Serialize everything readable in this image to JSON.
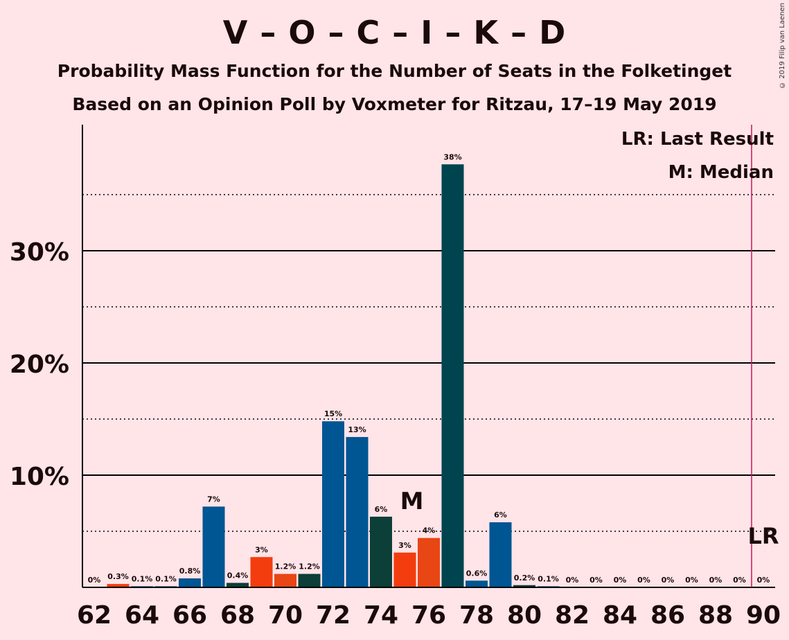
{
  "title": "V – O – C – I – K – D",
  "subtitle1": "Probability Mass Function for the Number of Seats in the Folketinget",
  "subtitle2": "Based on an Opinion Poll by Voxmeter for Ritzau, 17–19 May 2019",
  "copyright": "© 2019 Filip van Laenen",
  "legend": {
    "lr": "LR: Last Result",
    "m": "M: Median"
  },
  "markers": {
    "median_label": "M",
    "median_seat": 75,
    "lr_label": "LR",
    "lr_seat": 90
  },
  "colors": {
    "blue": "#005593",
    "red": "#F33D0E",
    "orange": "#E84614",
    "green": "#0B3F38",
    "teal": "#004450",
    "lr_line": "#C2185B"
  },
  "chart_data": {
    "type": "bar",
    "xlabel": "",
    "ylabel": "",
    "xlim": [
      62,
      90
    ],
    "ylim": [
      0,
      40
    ],
    "yticks": [
      10,
      20,
      30
    ],
    "ytick_labels": [
      "10%",
      "20%",
      "30%"
    ],
    "xticks": [
      62,
      64,
      66,
      68,
      70,
      72,
      74,
      76,
      78,
      80,
      82,
      84,
      86,
      88,
      90
    ],
    "seats": [
      62,
      63,
      64,
      65,
      66,
      67,
      68,
      69,
      70,
      71,
      72,
      73,
      74,
      75,
      76,
      77,
      78,
      79,
      80,
      81,
      82,
      83,
      84,
      85,
      86,
      87,
      88,
      89,
      90
    ],
    "values": [
      0,
      0.3,
      0.1,
      0.1,
      0.8,
      7.2,
      0.4,
      2.7,
      1.2,
      1.2,
      14.8,
      13.4,
      6.3,
      3.1,
      4.4,
      37.7,
      0.6,
      5.8,
      0.2,
      0.1,
      0,
      0,
      0,
      0,
      0,
      0,
      0,
      0,
      0
    ],
    "labels": [
      "0%",
      "0.3%",
      "0.1%",
      "0.1%",
      "0.8%",
      "7%",
      "0.4%",
      "3%",
      "1.2%",
      "1.2%",
      "15%",
      "13%",
      "6%",
      "3%",
      "4%",
      "38%",
      "0.6%",
      "6%",
      "0.2%",
      "0.1%",
      "0%",
      "0%",
      "0%",
      "0%",
      "0%",
      "0%",
      "0%",
      "0%",
      "0%"
    ],
    "bar_colors": [
      "blue",
      "red",
      "blue",
      "blue",
      "blue",
      "blue",
      "green",
      "red",
      "orange",
      "green",
      "blue",
      "blue",
      "green",
      "red",
      "orange",
      "teal",
      "blue",
      "blue",
      "green",
      "blue",
      "blue",
      "blue",
      "blue",
      "blue",
      "blue",
      "blue",
      "blue",
      "blue",
      "blue"
    ]
  }
}
